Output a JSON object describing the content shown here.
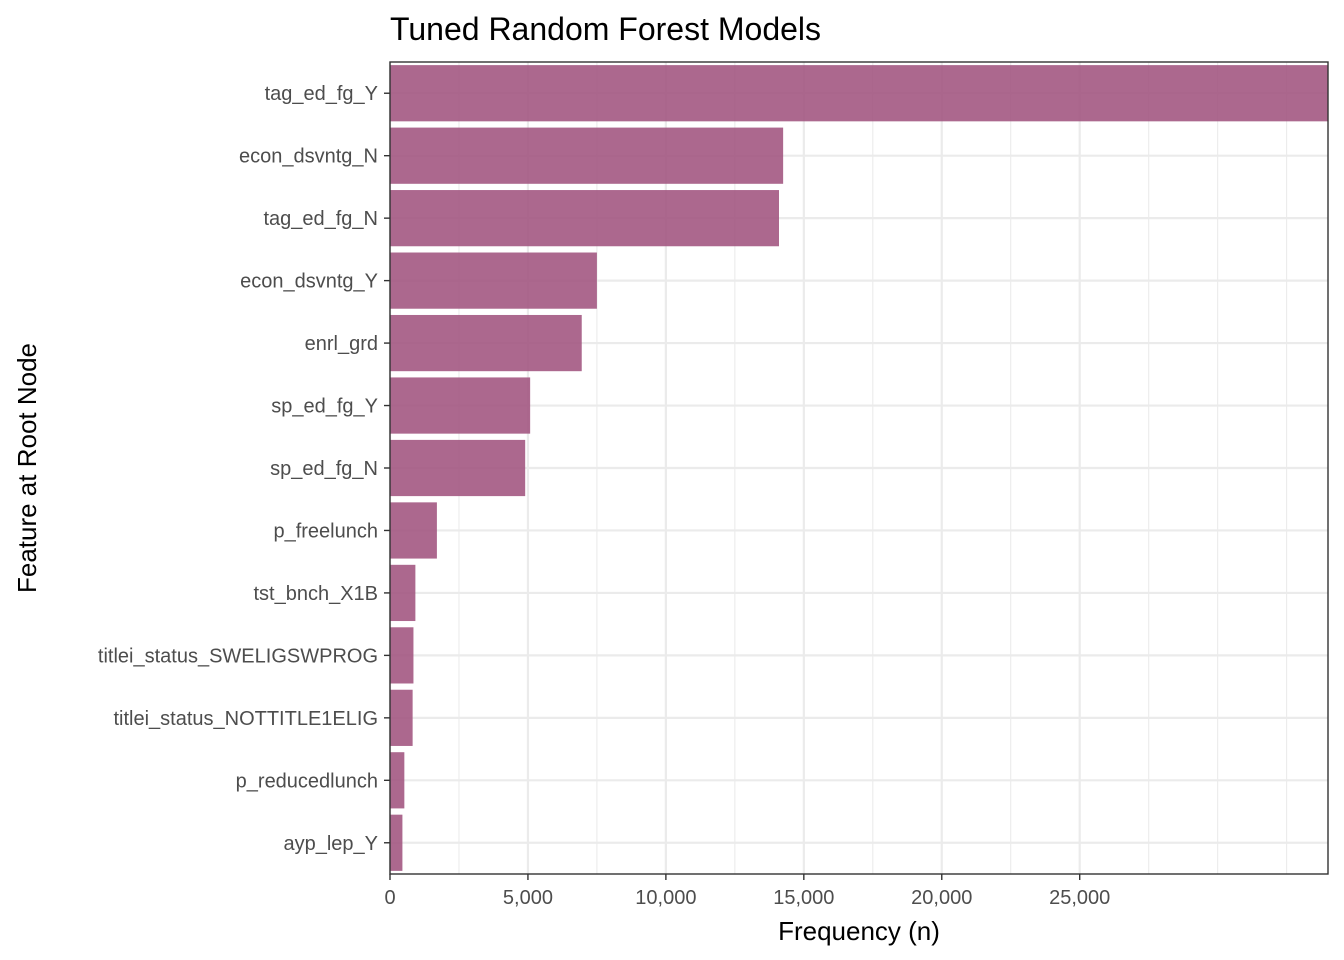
{
  "chart_data": {
    "type": "bar",
    "orientation": "horizontal",
    "title": "Tuned Random Forest Models",
    "xlabel": "Frequency (n)",
    "ylabel": "Feature at Root Node",
    "categories": [
      "tag_ed_fg_Y",
      "econ_dsvntg_N",
      "tag_ed_fg_N",
      "econ_dsvntg_Y",
      "enrl_grd",
      "sp_ed_fg_Y",
      "sp_ed_fg_N",
      "p_freelunch",
      "tst_bnch_X1B",
      "titlei_status_SWELIGSWPROG",
      "titlei_status_NOTTITLE1ELIG",
      "p_reducedlunch",
      "ayp_lep_Y"
    ],
    "values": [
      34000,
      14250,
      14100,
      7500,
      6950,
      5080,
      4900,
      1700,
      920,
      850,
      820,
      520,
      450
    ],
    "xlim": [
      0,
      34000
    ],
    "xticks": [
      0,
      5000,
      10000,
      15000,
      20000,
      25000
    ],
    "xtick_labels": [
      "0",
      "5,000",
      "10,000",
      "15,000",
      "20,000",
      "25,000"
    ],
    "grid": true,
    "bar_color": "#a0537e"
  }
}
